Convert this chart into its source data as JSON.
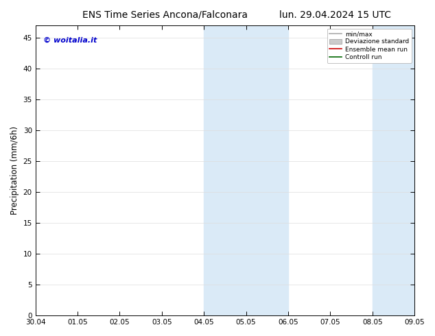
{
  "title_left": "ENS Time Series Ancona/Falconara",
  "title_right": "lun. 29.04.2024 15 UTC",
  "ylabel": "Precipitation (mm/6h)",
  "watermark": "© woitalia.it",
  "watermark_color": "#0000cc",
  "ylim": [
    0,
    47
  ],
  "yticks": [
    0,
    5,
    10,
    15,
    20,
    25,
    30,
    35,
    40,
    45
  ],
  "xtick_labels": [
    "30.04",
    "01.05",
    "02.05",
    "03.05",
    "04.05",
    "05.05",
    "06.05",
    "07.05",
    "08.05",
    "09.05"
  ],
  "shaded_bands": [
    {
      "xstart": 4,
      "xend": 6,
      "color": "#daeaf7",
      "alpha": 1.0
    },
    {
      "xstart": 8,
      "xend": 9,
      "color": "#daeaf7",
      "alpha": 1.0
    }
  ],
  "legend_items": [
    {
      "label": "min/max",
      "color": "#aaaaaa",
      "lw": 1.2,
      "ls": "-",
      "type": "line"
    },
    {
      "label": "Deviazione standard",
      "color": "#cccccc",
      "lw": 6,
      "ls": "-",
      "type": "patch"
    },
    {
      "label": "Ensemble mean run",
      "color": "#cc0000",
      "lw": 1.2,
      "ls": "-",
      "type": "line"
    },
    {
      "label": "Controll run",
      "color": "#006600",
      "lw": 1.2,
      "ls": "-",
      "type": "line"
    }
  ],
  "bg_color": "#ffffff",
  "plot_bg_color": "#ffffff",
  "grid_color": "#dddddd",
  "tick_label_fontsize": 7.5,
  "axis_label_fontsize": 8.5,
  "title_fontsize": 10,
  "watermark_fontsize": 8
}
